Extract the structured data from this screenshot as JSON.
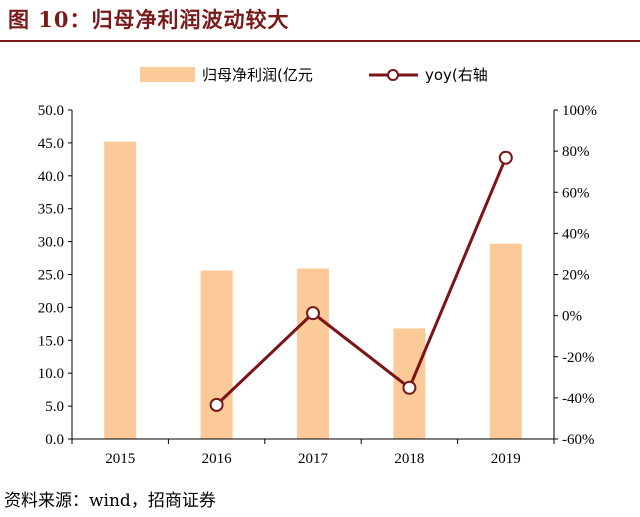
{
  "figure_title": "图 10：归母净利润波动较大",
  "source_note": "资料来源：wind，招商证券",
  "colors": {
    "title": "#7b1a1a",
    "bar": "#fcc998",
    "line": "#7b1417",
    "axis": "#000000"
  },
  "chart_data": {
    "type": "bar+line",
    "categories": [
      "2015",
      "2016",
      "2017",
      "2018",
      "2019"
    ],
    "series": [
      {
        "name": "归母净利润(亿元",
        "type": "bar",
        "axis": "left",
        "values": [
          45.2,
          25.6,
          25.9,
          16.8,
          29.7
        ]
      },
      {
        "name": "yoy(右轴",
        "type": "line",
        "axis": "right",
        "marker": "open-circle",
        "values": [
          null,
          -43.4,
          1.2,
          -35.1,
          76.8
        ]
      }
    ],
    "y_left": {
      "ylim": [
        0,
        50
      ],
      "ticks": [
        "0.0",
        "5.0",
        "10.0",
        "15.0",
        "20.0",
        "25.0",
        "30.0",
        "35.0",
        "40.0",
        "45.0",
        "50.0"
      ]
    },
    "y_right": {
      "ylim": [
        -60,
        100
      ],
      "ticks": [
        "-60%",
        "-40%",
        "-20%",
        "0%",
        "20%",
        "40%",
        "60%",
        "80%",
        "100%"
      ]
    },
    "legend": "top-center",
    "grid": false
  }
}
